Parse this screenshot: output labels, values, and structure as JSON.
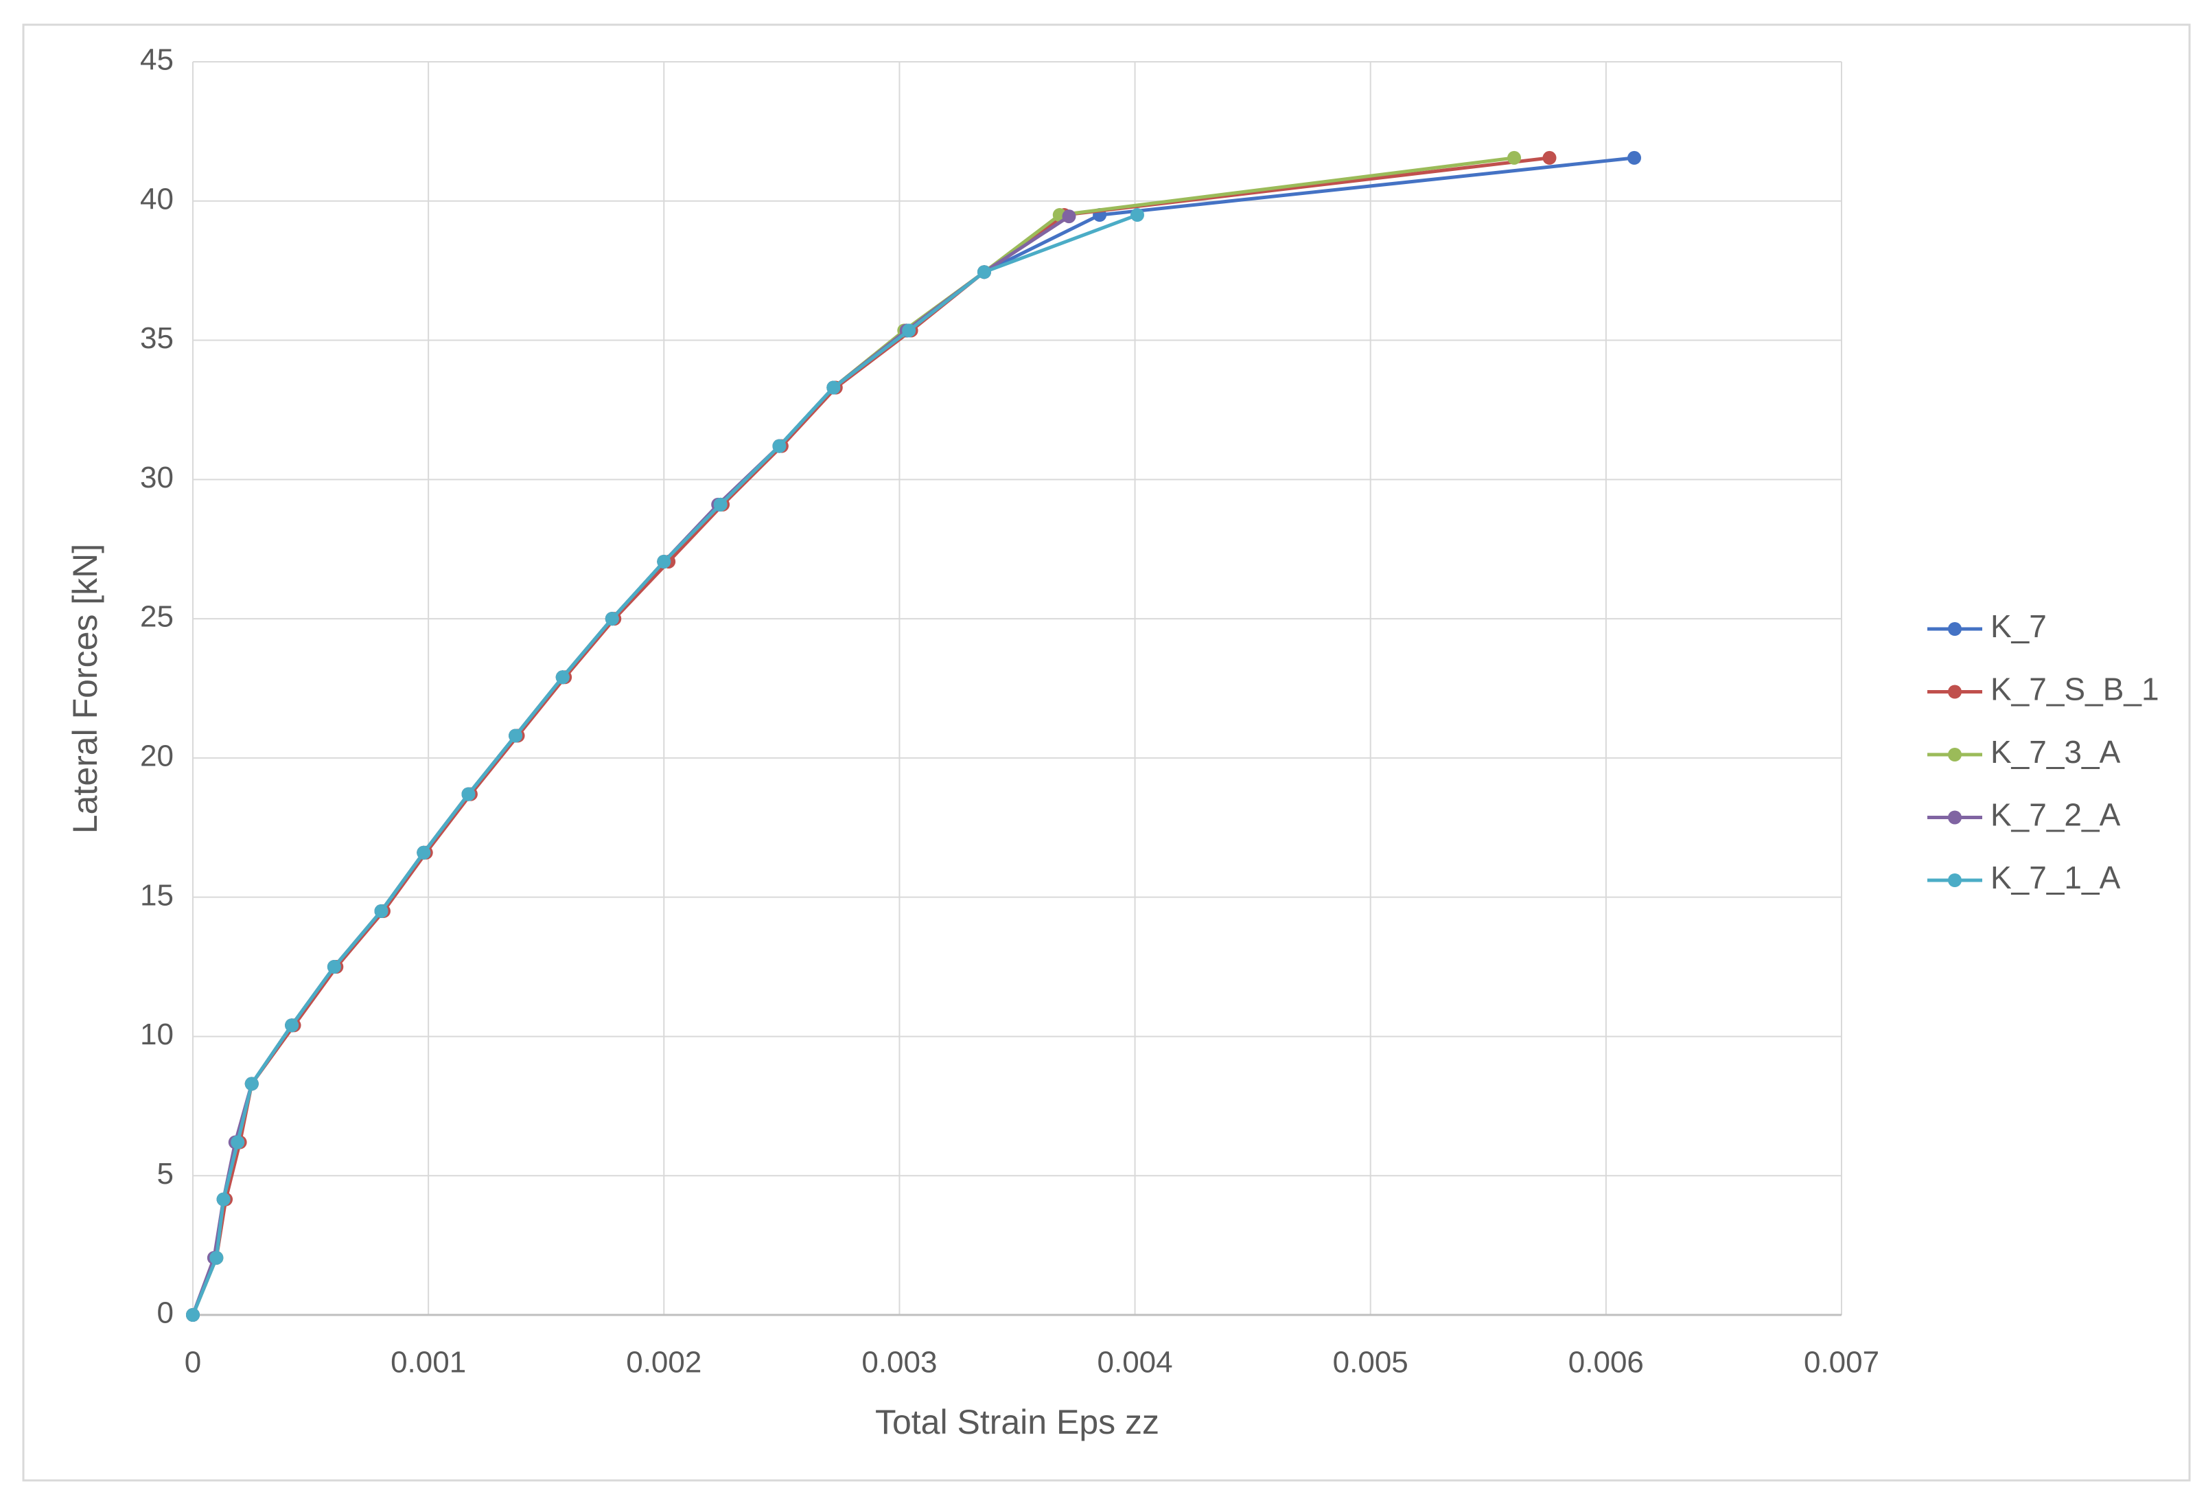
{
  "chart_data": {
    "type": "line",
    "xlabel": "Total Strain Eps zz",
    "ylabel": "Lateral Forces [kN]",
    "xlim": [
      0,
      0.007
    ],
    "xticks": [
      0,
      0.001,
      0.002,
      0.003,
      0.004,
      0.005,
      0.006,
      0.007
    ],
    "ylim": [
      0,
      45
    ],
    "yticks": [
      0,
      5,
      10,
      15,
      20,
      25,
      30,
      35,
      40,
      45
    ],
    "grid": true,
    "legend": "right",
    "series": [
      {
        "name": "K_7",
        "color": "#4472c4",
        "x": [
          0,
          0.0001,
          0.00013,
          0.00019,
          0.00025,
          0.00042,
          0.0006,
          0.0008,
          0.00098,
          0.00117,
          0.00137,
          0.00157,
          0.00178,
          0.002,
          0.00224,
          0.00249,
          0.00272,
          0.00303,
          0.00336,
          0.00385,
          0.00612
        ],
        "values": [
          0,
          2.05,
          4.15,
          6.2,
          8.3,
          10.4,
          12.5,
          14.5,
          16.6,
          18.7,
          20.8,
          22.9,
          25,
          27.05,
          29.1,
          31.2,
          33.3,
          35.35,
          37.45,
          39.5,
          41.55
        ]
      },
      {
        "name": "K_7_S_B_1",
        "color": "#c0504d",
        "x": [
          0,
          0.0001,
          0.00014,
          0.0002,
          0.00025,
          0.00043,
          0.00061,
          0.00081,
          0.00099,
          0.00118,
          0.00138,
          0.00158,
          0.00179,
          0.00202,
          0.00225,
          0.0025,
          0.00273,
          0.00305,
          0.00336,
          0.0037,
          0.00576
        ],
        "values": [
          0,
          2.05,
          4.15,
          6.2,
          8.3,
          10.4,
          12.5,
          14.5,
          16.6,
          18.7,
          20.8,
          22.9,
          25,
          27.05,
          29.1,
          31.2,
          33.3,
          35.35,
          37.45,
          39.5,
          41.55
        ]
      },
      {
        "name": "K_7_3_A",
        "color": "#9bbb59",
        "x": [
          0,
          0.0001,
          0.00013,
          0.00019,
          0.00025,
          0.00042,
          0.0006,
          0.0008,
          0.00098,
          0.00117,
          0.00137,
          0.00157,
          0.00178,
          0.002,
          0.00224,
          0.00249,
          0.00272,
          0.00302,
          0.00336,
          0.00368,
          0.00561
        ],
        "values": [
          0,
          2.05,
          4.15,
          6.2,
          8.3,
          10.4,
          12.5,
          14.5,
          16.6,
          18.7,
          20.8,
          22.9,
          25,
          27.05,
          29.1,
          31.2,
          33.3,
          35.35,
          37.45,
          39.5,
          41.55
        ]
      },
      {
        "name": "K_7_2_A",
        "color": "#8064a2",
        "x": [
          0,
          9e-05,
          0.00013,
          0.00018,
          0.00025,
          0.00042,
          0.0006,
          0.0008,
          0.00098,
          0.00117,
          0.00137,
          0.00157,
          0.00178,
          0.002,
          0.00223,
          0.00249,
          0.00272,
          0.00303,
          0.00336,
          0.00372
        ],
        "values": [
          0,
          2.05,
          4.15,
          6.2,
          8.3,
          10.4,
          12.5,
          14.5,
          16.6,
          18.7,
          20.8,
          22.9,
          25,
          27.05,
          29.1,
          31.2,
          33.3,
          35.35,
          37.45,
          39.45
        ]
      },
      {
        "name": "K_7_1_A",
        "color": "#4bacc6",
        "x": [
          0,
          0.0001,
          0.00013,
          0.00019,
          0.00025,
          0.00042,
          0.0006,
          0.0008,
          0.00098,
          0.00117,
          0.00137,
          0.00157,
          0.00178,
          0.002,
          0.00224,
          0.00249,
          0.00272,
          0.00304,
          0.00336,
          0.00401
        ],
        "values": [
          0,
          2.05,
          4.15,
          6.2,
          8.3,
          10.4,
          12.5,
          14.5,
          16.6,
          18.7,
          20.8,
          22.9,
          25,
          27.05,
          29.1,
          31.2,
          33.3,
          35.35,
          37.45,
          39.5
        ]
      }
    ]
  }
}
